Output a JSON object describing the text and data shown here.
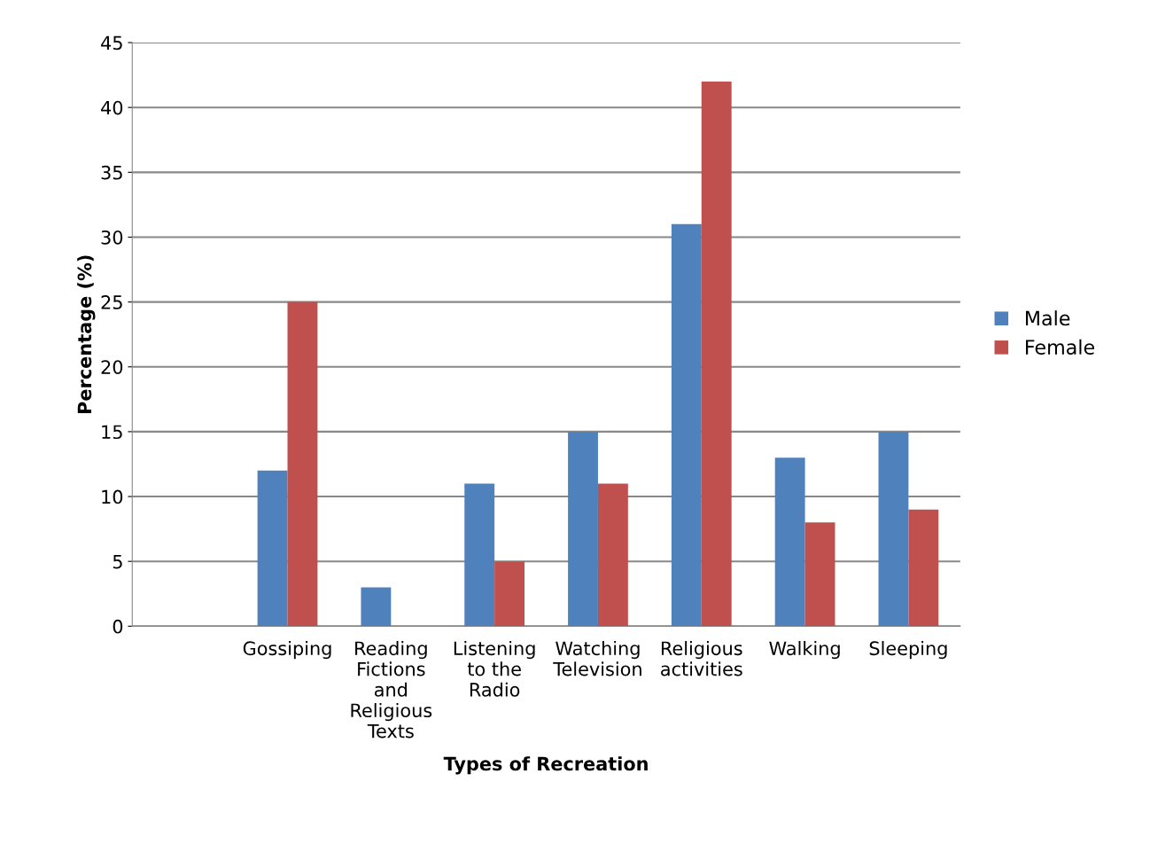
{
  "chart_data": {
    "type": "bar",
    "xlabel": "Types of Recreation",
    "ylabel": "Percentage (%)",
    "categories": [
      null,
      "Gossiping",
      "Reading\nFictions\nand\nReligious\nTexts",
      "Listening\nto the\nRadio",
      "Watching\nTelevision",
      "Religious\nactivities",
      "Walking",
      "Sleeping"
    ],
    "series": [
      {
        "name": "Male",
        "color": "#4f81bd",
        "values": [
          null,
          12,
          3,
          11,
          15,
          31,
          13,
          15
        ]
      },
      {
        "name": "Female",
        "color": "#c0504d",
        "values": [
          null,
          25,
          0,
          5,
          11,
          42,
          8,
          9
        ]
      }
    ],
    "ylim": [
      0,
      45
    ],
    "yticks": [
      0,
      5,
      10,
      15,
      20,
      25,
      30,
      35,
      40,
      45
    ],
    "grid": "y",
    "legend": "right"
  }
}
